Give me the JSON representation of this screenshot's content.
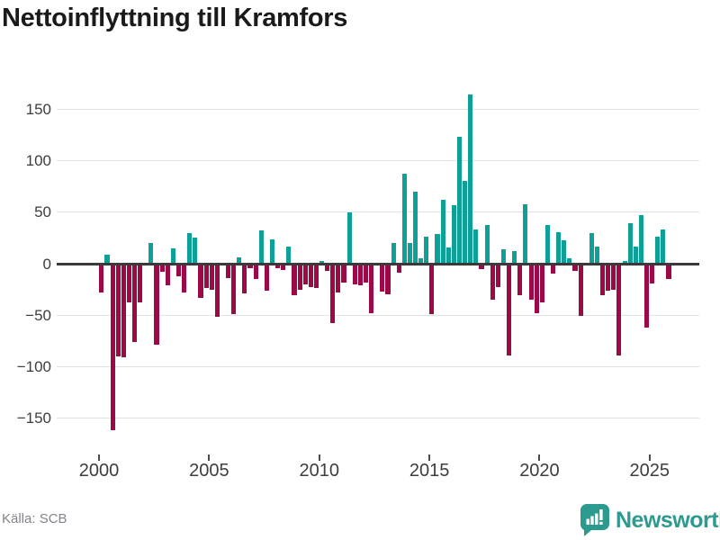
{
  "header": {
    "title": "Nettoinflyttning till Kramfors"
  },
  "chart_data": {
    "type": "bar",
    "title": "Nettoinflyttning till Kramfors",
    "x_unit": "quarter",
    "quarters_per_year": 4,
    "series": [
      {
        "year": 2000,
        "values": [
          -28,
          9,
          -162,
          -90
        ]
      },
      {
        "year": 2001,
        "values": [
          -91,
          -38,
          -76,
          -38
        ]
      },
      {
        "year": 2002,
        "values": [
          0,
          20,
          -79,
          -8
        ]
      },
      {
        "year": 2003,
        "values": [
          -21,
          15,
          -12,
          -28
        ]
      },
      {
        "year": 2004,
        "values": [
          30,
          25,
          -33,
          -24
        ]
      },
      {
        "year": 2005,
        "values": [
          -25,
          -52,
          0,
          -14
        ]
      },
      {
        "year": 2006,
        "values": [
          -49,
          6,
          -29,
          -4
        ]
      },
      {
        "year": 2007,
        "values": [
          -15,
          32,
          -26,
          24
        ]
      },
      {
        "year": 2008,
        "values": [
          -4,
          -6,
          17,
          -31
        ]
      },
      {
        "year": 2009,
        "values": [
          -25,
          -20,
          -23,
          -24
        ]
      },
      {
        "year": 2010,
        "values": [
          3,
          -7,
          -58,
          -28
        ]
      },
      {
        "year": 2011,
        "values": [
          -18,
          50,
          -20,
          -21
        ]
      },
      {
        "year": 2012,
        "values": [
          -18,
          -48,
          0,
          -27
        ]
      },
      {
        "year": 2013,
        "values": [
          -30,
          20,
          -9,
          87
        ]
      },
      {
        "year": 2014,
        "values": [
          20,
          70,
          5,
          26
        ]
      },
      {
        "year": 2015,
        "values": [
          -49,
          29,
          62,
          16
        ]
      },
      {
        "year": 2016,
        "values": [
          57,
          123,
          80,
          164
        ]
      },
      {
        "year": 2017,
        "values": [
          33,
          -5,
          38,
          -35
        ]
      },
      {
        "year": 2018,
        "values": [
          -23,
          14,
          -89,
          12
        ]
      },
      {
        "year": 2019,
        "values": [
          -31,
          58,
          -35,
          -48
        ]
      },
      {
        "year": 2020,
        "values": [
          -38,
          38,
          -10,
          31
        ]
      },
      {
        "year": 2021,
        "values": [
          23,
          5,
          -7,
          -51
        ]
      },
      {
        "year": 2022,
        "values": [
          0,
          30,
          17,
          -31
        ]
      },
      {
        "year": 2023,
        "values": [
          -26,
          -25,
          -89,
          3
        ]
      },
      {
        "year": 2024,
        "values": [
          39,
          17,
          47,
          -62
        ]
      },
      {
        "year": 2025,
        "values": [
          -19,
          26,
          33,
          -15
        ]
      }
    ],
    "yticks": [
      150,
      100,
      50,
      0,
      -50,
      -100,
      -150
    ],
    "ylim": [
      -175,
      180
    ],
    "xticks": [
      2000,
      2005,
      2010,
      2015,
      2020,
      2025
    ],
    "grid": "horizontal",
    "legend": "none",
    "positive_color": "#0da096",
    "negative_color": "#9b0a46",
    "zero_line_color": "#3a3a3a",
    "gridline_color": "#e2e2e2"
  },
  "footer": {
    "source": "Källa: SCB",
    "brand": "Newsworthy",
    "brand_color": "#2c9a8e"
  }
}
